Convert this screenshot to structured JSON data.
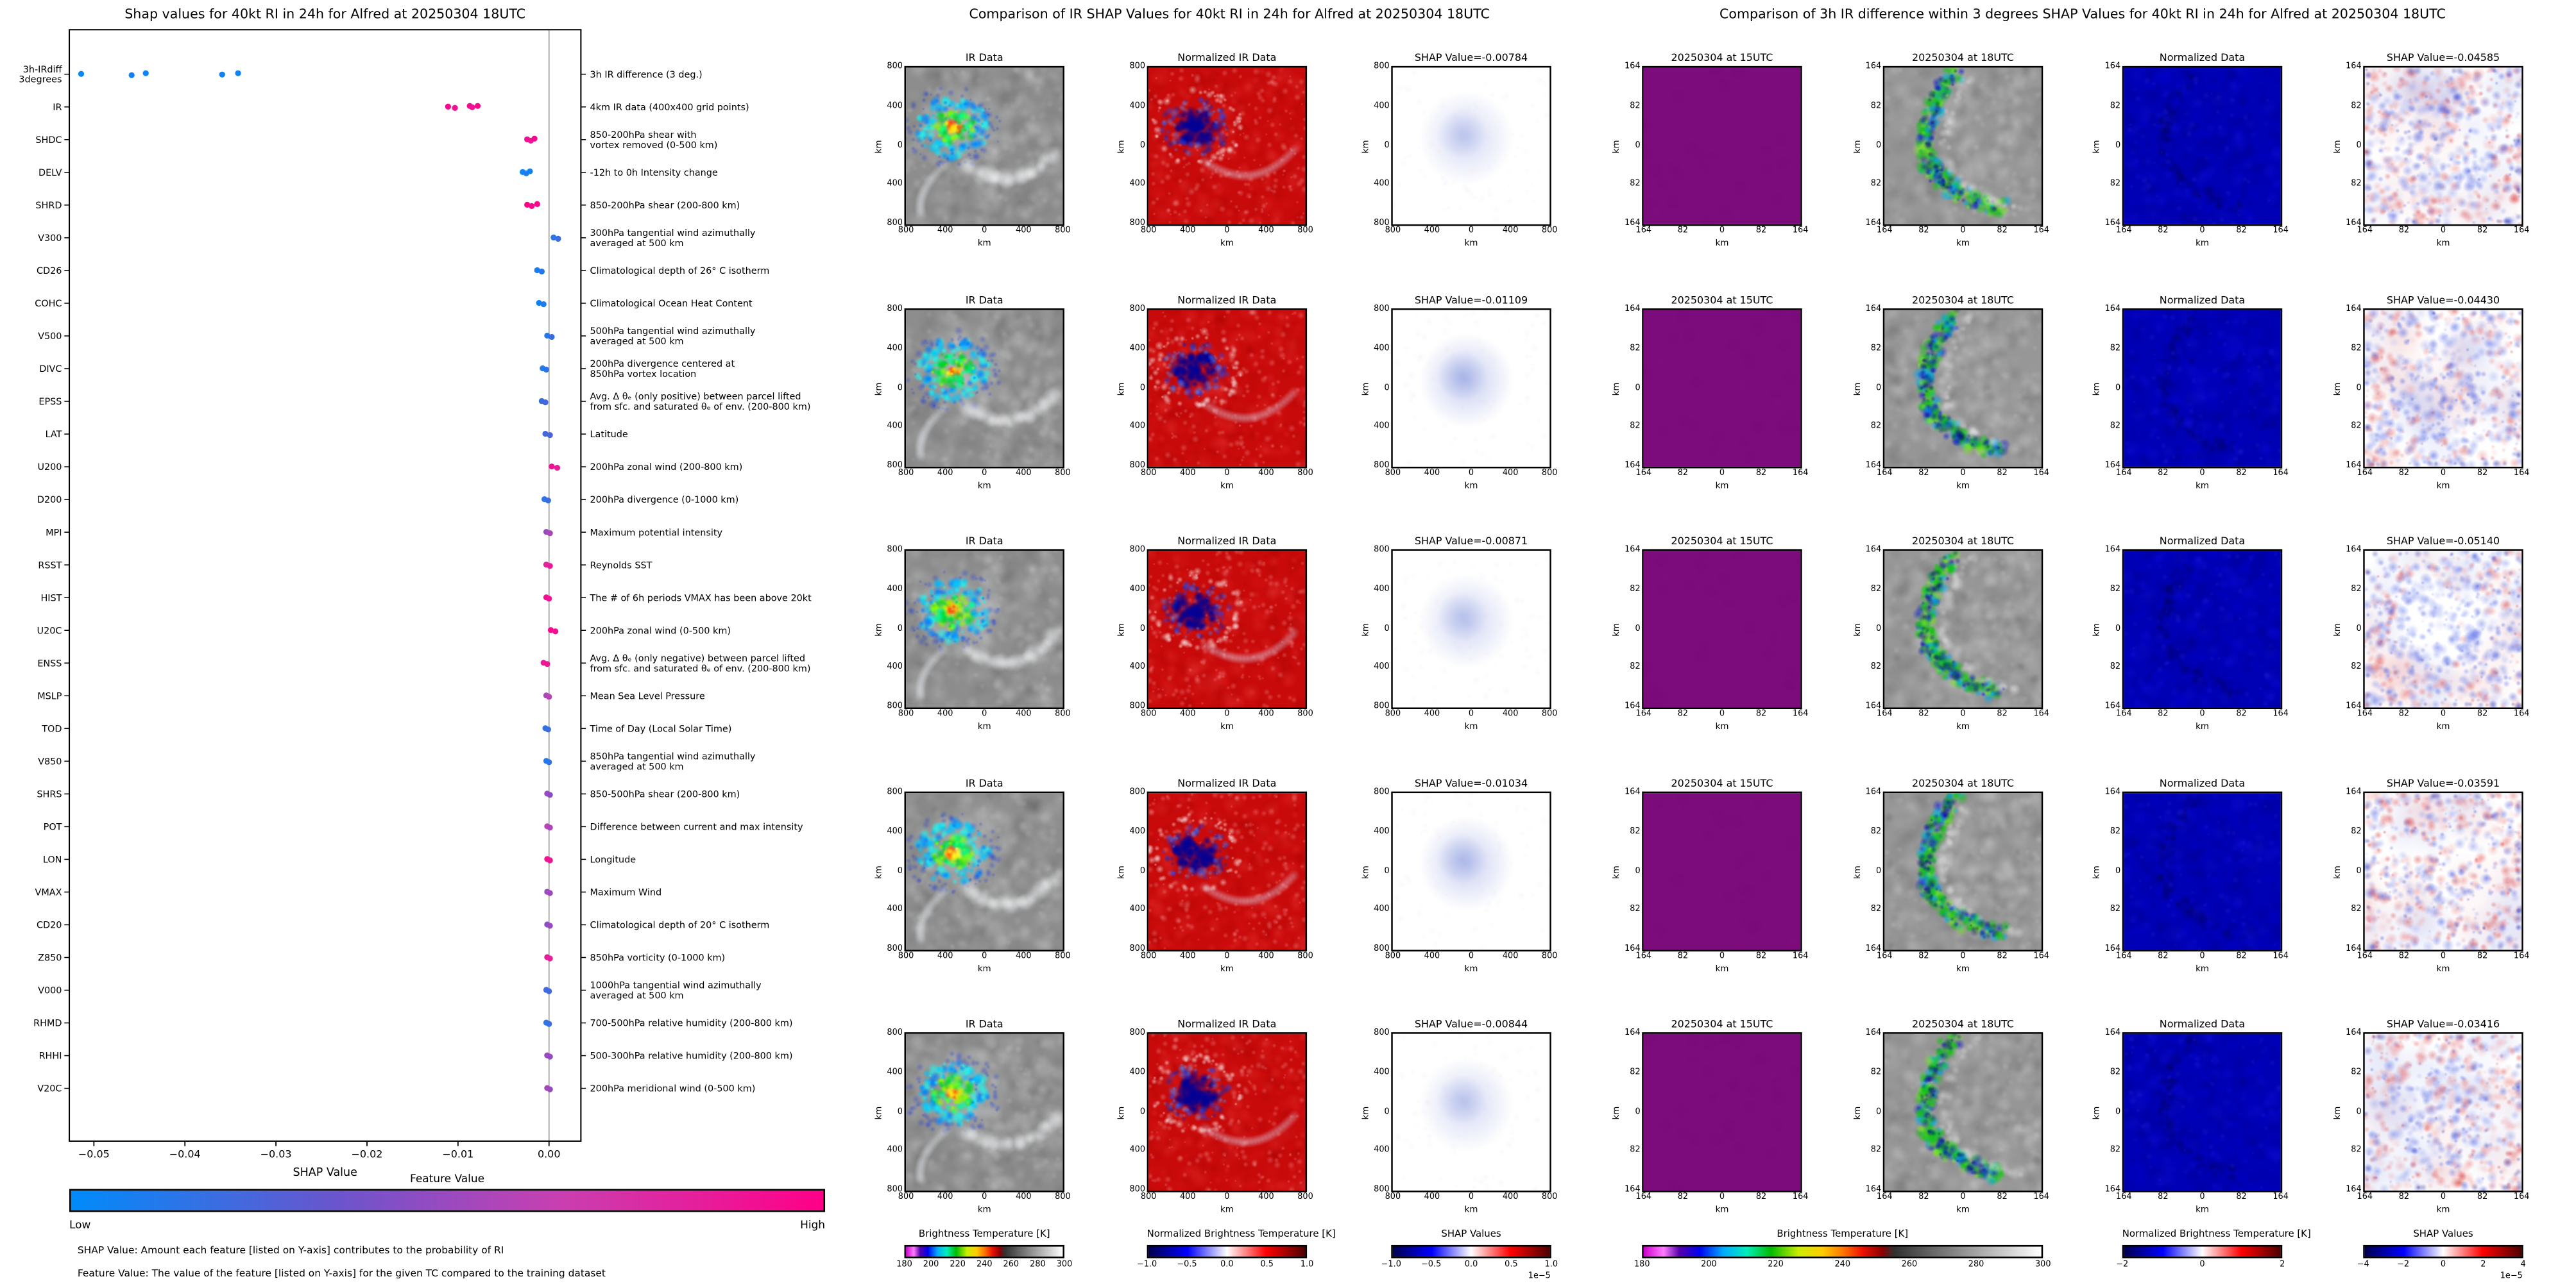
{
  "colormaps": {
    "feature_value": [
      [
        0,
        "#008bfb"
      ],
      [
        0.35,
        "#6a55cd"
      ],
      [
        0.65,
        "#c93fb1"
      ],
      [
        1,
        "#ff0087"
      ]
    ],
    "ir_bt": [
      [
        0,
        "#cc00cc"
      ],
      [
        0.05,
        "#ff7dff"
      ],
      [
        0.09,
        "#5500aa"
      ],
      [
        0.14,
        "#0000ee"
      ],
      [
        0.2,
        "#00aaff"
      ],
      [
        0.26,
        "#00eebb"
      ],
      [
        0.32,
        "#00bb00"
      ],
      [
        0.39,
        "#ccee00"
      ],
      [
        0.45,
        "#ffcc00"
      ],
      [
        0.5,
        "#ff7700"
      ],
      [
        0.55,
        "#ee1100"
      ],
      [
        0.6,
        "#8b0000"
      ],
      [
        0.63,
        "#303030"
      ],
      [
        0.8,
        "#909090"
      ],
      [
        1,
        "#ffffff"
      ]
    ],
    "seismic": [
      [
        0,
        "#00004d"
      ],
      [
        0.25,
        "#0000ff"
      ],
      [
        0.5,
        "#ffffff"
      ],
      [
        0.75,
        "#ff0000"
      ],
      [
        1,
        "#4d0000"
      ]
    ]
  },
  "chart_data": [
    {
      "type": "scatter",
      "title": "Shap values for 40kt RI in 24h for Alfred at 20250304 18UTC",
      "xlabel": "SHAP Value",
      "xlim": [
        -0.0527,
        0.0035
      ],
      "xticks": [
        {
          "v": -0.05,
          "label": "−0.05"
        },
        {
          "v": -0.04,
          "label": "−0.04"
        },
        {
          "v": -0.03,
          "label": "−0.03"
        },
        {
          "v": -0.02,
          "label": "−0.02"
        },
        {
          "v": -0.01,
          "label": "−0.01"
        },
        {
          "v": 0.0,
          "label": "0.00"
        }
      ],
      "colorbar": {
        "title": "Feature Value",
        "low": "Low",
        "high": "High"
      },
      "footnotes": [
        "SHAP Value: Amount each feature [listed on Y-axis] contributes to the probability of RI",
        "Feature Value: The value of the feature [listed on Y-axis] for the given TC compared to the training dataset"
      ],
      "features": [
        {
          "label": "3h-IRdiff\n3degrees",
          "desc": [
            "3h IR difference (3 deg.)"
          ],
          "points": [
            [
              -0.0514,
              0.02
            ],
            [
              -0.04585,
              0.05
            ],
            [
              -0.0443,
              0.03
            ],
            [
              -0.03591,
              0.06
            ],
            [
              -0.03416,
              0.04
            ]
          ]
        },
        {
          "label": "IR",
          "desc": [
            "4km IR data (400x400 grid points)"
          ],
          "points": [
            [
              -0.01109,
              0.95
            ],
            [
              -0.01034,
              0.9
            ],
            [
              -0.00871,
              0.93
            ],
            [
              -0.00844,
              0.9
            ],
            [
              -0.00784,
              0.96
            ]
          ]
        },
        {
          "label": "SHDC",
          "desc": [
            "850-200hPa shear with",
            "vortex removed (0-500 km)"
          ],
          "points": [
            [
              -0.0024,
              0.92
            ],
            [
              -0.002,
              0.88
            ],
            [
              -0.0016,
              0.95
            ]
          ]
        },
        {
          "label": "DELV",
          "desc": [
            "-12h to 0h Intensity change"
          ],
          "points": [
            [
              -0.0029,
              0.05
            ],
            [
              -0.0025,
              0.1
            ],
            [
              -0.0021,
              0.05
            ]
          ]
        },
        {
          "label": "SHRD",
          "desc": [
            "850-200hPa shear (200-800 km)"
          ],
          "points": [
            [
              -0.0024,
              0.98
            ],
            [
              -0.0019,
              0.95
            ],
            [
              -0.0013,
              0.97
            ]
          ]
        },
        {
          "label": "V300",
          "desc": [
            "300hPa tangential wind azimuthally",
            "averaged at 500 km"
          ],
          "points": [
            [
              0.0005,
              0.15
            ],
            [
              0.001,
              0.2
            ]
          ]
        },
        {
          "label": "CD26",
          "desc": [
            "Climatological depth of 26° C isotherm"
          ],
          "points": [
            [
              -0.0013,
              0.08
            ],
            [
              -0.0008,
              0.12
            ]
          ]
        },
        {
          "label": "COHC",
          "desc": [
            "Climatological Ocean Heat Content"
          ],
          "points": [
            [
              -0.0011,
              0.06
            ],
            [
              -0.0006,
              0.1
            ]
          ]
        },
        {
          "label": "V500",
          "desc": [
            "500hPa tangential wind azimuthally",
            "averaged at 500 km"
          ],
          "points": [
            [
              -0.0002,
              0.12
            ],
            [
              0.0003,
              0.18
            ]
          ]
        },
        {
          "label": "DIVC",
          "desc": [
            "200hPa divergence centered at",
            "850hPa vortex location"
          ],
          "points": [
            [
              -0.0007,
              0.12
            ],
            [
              -0.0003,
              0.15
            ]
          ]
        },
        {
          "label": "EPSS",
          "desc": [
            "Avg. Δ θₑ (only positive) between parcel lifted",
            "from sfc. and saturated θₑ of env. (200-800 km)"
          ],
          "points": [
            [
              -0.0008,
              0.18
            ],
            [
              -0.0004,
              0.22
            ]
          ]
        },
        {
          "label": "LAT",
          "desc": [
            "Latitude"
          ],
          "points": [
            [
              -0.0004,
              0.22
            ],
            [
              0.0001,
              0.25
            ]
          ]
        },
        {
          "label": "U200",
          "desc": [
            "200hPa zonal wind (200-800 km)"
          ],
          "points": [
            [
              0.0003,
              0.9
            ],
            [
              0.0009,
              0.85
            ]
          ]
        },
        {
          "label": "D200",
          "desc": [
            "200hPa divergence (0-1000 km)"
          ],
          "points": [
            [
              -0.0005,
              0.15
            ],
            [
              -0.0001,
              0.2
            ]
          ]
        },
        {
          "label": "MPI",
          "desc": [
            "Maximum potential intensity"
          ],
          "points": [
            [
              -0.0003,
              0.5
            ],
            [
              0.0001,
              0.55
            ]
          ]
        },
        {
          "label": "RSST",
          "desc": [
            "Reynolds SST"
          ],
          "points": [
            [
              -0.0003,
              0.8
            ],
            [
              0.0001,
              0.85
            ]
          ]
        },
        {
          "label": "HIST",
          "desc": [
            "The # of 6h periods VMAX has been above 20kt"
          ],
          "points": [
            [
              -0.0003,
              0.92
            ],
            [
              0,
              0.9
            ]
          ]
        },
        {
          "label": "U20C",
          "desc": [
            "200hPa zonal wind (0-500 km)"
          ],
          "points": [
            [
              0.0002,
              0.95
            ],
            [
              0.0007,
              0.92
            ]
          ]
        },
        {
          "label": "ENSS",
          "desc": [
            "Avg. Δ θₑ (only negative) between parcel lifted",
            "from sfc. and saturated θₑ of env. (200-800 km)"
          ],
          "points": [
            [
              -0.0006,
              0.85
            ],
            [
              -0.0002,
              0.88
            ]
          ]
        },
        {
          "label": "MSLP",
          "desc": [
            "Mean Sea Level Pressure"
          ],
          "points": [
            [
              -0.0003,
              0.55
            ],
            [
              0,
              0.6
            ]
          ]
        },
        {
          "label": "TOD",
          "desc": [
            "Time of Day (Local Solar Time)"
          ],
          "points": [
            [
              -0.0004,
              0.15
            ],
            [
              -0.0001,
              0.2
            ]
          ]
        },
        {
          "label": "V850",
          "desc": [
            "850hPa tangential wind azimuthally",
            "averaged at 500 km"
          ],
          "points": [
            [
              -0.0003,
              0.1
            ],
            [
              0,
              0.15
            ]
          ]
        },
        {
          "label": "SHRS",
          "desc": [
            "850-500hPa shear (200-800 km)"
          ],
          "points": [
            [
              -0.0002,
              0.5
            ],
            [
              0.0001,
              0.45
            ]
          ]
        },
        {
          "label": "POT",
          "desc": [
            "Difference between current and max intensity"
          ],
          "points": [
            [
              -0.0002,
              0.6
            ],
            [
              0.0001,
              0.55
            ]
          ]
        },
        {
          "label": "LON",
          "desc": [
            "Longitude"
          ],
          "points": [
            [
              -0.0002,
              0.9
            ],
            [
              0.0001,
              0.88
            ]
          ]
        },
        {
          "label": "VMAX",
          "desc": [
            "Maximum Wind"
          ],
          "points": [
            [
              -0.0002,
              0.5
            ],
            [
              0.0001,
              0.52
            ]
          ]
        },
        {
          "label": "CD20",
          "desc": [
            "Climatological depth of 20° C isotherm"
          ],
          "points": [
            [
              -0.0002,
              0.45
            ],
            [
              0.0001,
              0.5
            ]
          ]
        },
        {
          "label": "Z850",
          "desc": [
            "850hPa vorticity (0-1000 km)"
          ],
          "points": [
            [
              -0.0002,
              0.85
            ],
            [
              0.0001,
              0.82
            ]
          ]
        },
        {
          "label": "V000",
          "desc": [
            "1000hPa tangential wind azimuthally",
            "averaged at 500 km"
          ],
          "points": [
            [
              -0.0003,
              0.2
            ],
            [
              0,
              0.22
            ]
          ]
        },
        {
          "label": "RHMD",
          "desc": [
            "700-500hPa relative humidity (200-800 km)"
          ],
          "points": [
            [
              -0.0003,
              0.15
            ],
            [
              0,
              0.18
            ]
          ]
        },
        {
          "label": "RHHI",
          "desc": [
            "500-300hPa relative humidity (200-800 km)"
          ],
          "points": [
            [
              -0.0002,
              0.5
            ],
            [
              0.0001,
              0.48
            ]
          ]
        },
        {
          "label": "V20C",
          "desc": [
            "200hPa meridional wind (0-500 km)"
          ],
          "points": [
            [
              -0.0002,
              0.55
            ],
            [
              0.0001,
              0.5
            ]
          ]
        }
      ]
    },
    {
      "type": "heatmap",
      "title": "Comparison of IR SHAP Values for 40kt RI in 24h for Alfred at 20250304 18UTC",
      "columns": [
        {
          "title": "IR Data",
          "painter": "ir"
        },
        {
          "title": "Normalized IR Data",
          "painter": "norm_ir"
        },
        {
          "title_from_row": true,
          "painter": "shap_blob"
        }
      ],
      "rows": [
        {
          "title": "SHAP Value=-0.00784",
          "shap_value": -0.00784
        },
        {
          "title": "SHAP Value=-0.01109",
          "shap_value": -0.01109
        },
        {
          "title": "SHAP Value=-0.00871",
          "shap_value": -0.00871
        },
        {
          "title": "SHAP Value=-0.01034",
          "shap_value": -0.01034
        },
        {
          "title": "SHAP Value=-0.00844",
          "shap_value": -0.00844
        }
      ],
      "axis": {
        "xticks": [
          "800",
          "400",
          "0",
          "400",
          "800"
        ],
        "yticks": [
          "800",
          "400",
          "0",
          "400",
          "800"
        ],
        "unit": "km"
      },
      "colorbars": [
        {
          "label": "Brightness Temperature [K]",
          "ticks": [
            "180",
            "200",
            "220",
            "240",
            "260",
            "280",
            "300"
          ],
          "cmap": "ir_bt"
        },
        {
          "label": "Normalized Brightness Temperature [K]",
          "ticks": [
            "−1.0",
            "−0.5",
            "0.0",
            "0.5",
            "1.0"
          ],
          "cmap": "seismic"
        },
        {
          "label": "SHAP Values",
          "ticks": [
            "−1.0",
            "−0.5",
            "0.0",
            "0.5",
            "1.0"
          ],
          "cmap": "seismic",
          "offset": "1e−5"
        }
      ]
    },
    {
      "type": "heatmap",
      "title": "Comparison of 3h IR difference within 3 degrees SHAP Values for 40kt RI in 24h for Alfred at 20250304 18UTC",
      "columns": [
        {
          "title": "20250304 at 15UTC",
          "painter": "purple15"
        },
        {
          "title": "20250304 at 18UTC",
          "painter": "ir18"
        },
        {
          "title": "Normalized Data",
          "painter": "norm_blue"
        },
        {
          "title_from_row": true,
          "painter": "shap_noise"
        }
      ],
      "rows": [
        {
          "title": "SHAP Value=-0.04585",
          "shap_value": -0.04585
        },
        {
          "title": "SHAP Value=-0.04430",
          "shap_value": -0.0443
        },
        {
          "title": "SHAP Value=-0.05140",
          "shap_value": -0.0514
        },
        {
          "title": "SHAP Value=-0.03591",
          "shap_value": -0.03591
        },
        {
          "title": "SHAP Value=-0.03416",
          "shap_value": -0.03416
        }
      ],
      "axis": {
        "xticks": [
          "164",
          "82",
          "0",
          "82",
          "164"
        ],
        "yticks": [
          "164",
          "82",
          "0",
          "82",
          "164"
        ],
        "unit": "km"
      },
      "colorbars": [
        {
          "label": "Brightness Temperature [K]",
          "ticks": [
            "180",
            "200",
            "220",
            "240",
            "260",
            "280",
            "300"
          ],
          "cmap": "ir_bt"
        },
        {
          "label": "Normalized Brightness Temperature [K]",
          "ticks": [
            "−2",
            "0",
            "2"
          ],
          "cmap": "seismic"
        },
        {
          "label": "SHAP Values",
          "ticks": [
            "−4",
            "−2",
            "0",
            "2",
            "4"
          ],
          "cmap": "seismic",
          "offset": "1e−5"
        }
      ]
    }
  ]
}
